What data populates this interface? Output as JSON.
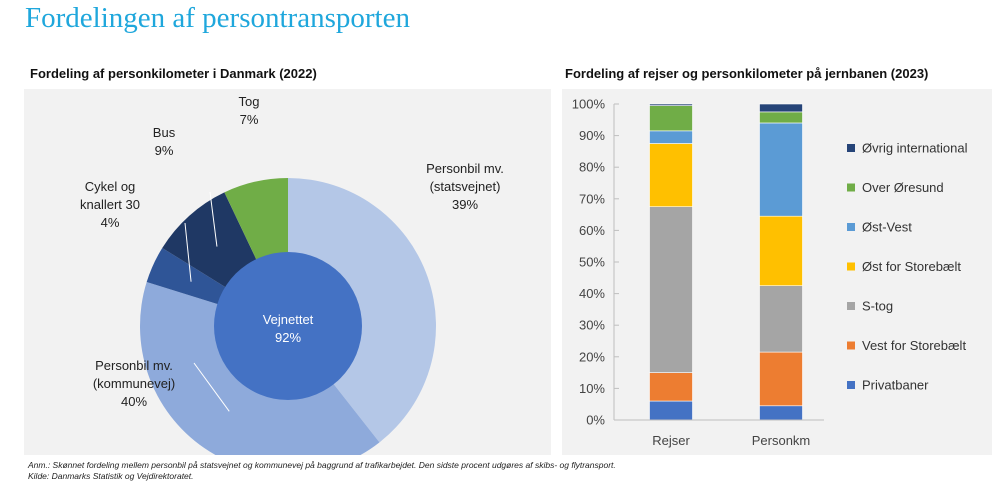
{
  "header": {
    "title": "Fordelingen af persontransporten"
  },
  "chart_data": [
    {
      "type": "pie",
      "title": "Fordeling af personkilometer i Danmark (2022)",
      "outer_ring": [
        {
          "name": "Personbil mv. (statsvejnet)",
          "label_lines": [
            "Personbil mv.",
            "(statsvejnet)"
          ],
          "value": 39,
          "pct_label": "39%",
          "color": "#b4c7e7"
        },
        {
          "name": "Personbil mv. (kommunevej)",
          "label_lines": [
            "Personbil mv.",
            "(kommunevej)"
          ],
          "value": 40,
          "pct_label": "40%",
          "color": "#8eaadb"
        },
        {
          "name": "Cykel og knallert 30",
          "label_lines": [
            "Cykel og",
            "knallert 30"
          ],
          "value": 4,
          "pct_label": "4%",
          "color": "#2f5597"
        },
        {
          "name": "Bus",
          "label_lines": [
            "Bus"
          ],
          "value": 9,
          "pct_label": "9%",
          "color": "#1f3864"
        },
        {
          "name": "Tog",
          "label_lines": [
            "Tog"
          ],
          "value": 7,
          "pct_label": "7%",
          "color": "#70ad47"
        }
      ],
      "inner": {
        "name": "Vejnettet",
        "value": 92,
        "pct_label": "92%",
        "color": "#4472c4"
      }
    },
    {
      "type": "bar",
      "stacked": true,
      "title": "Fordeling af rejser og personkilometer på jernbanen (2023)",
      "categories": [
        "Rejser",
        "Personkm"
      ],
      "y_ticks": [
        "0%",
        "10%",
        "20%",
        "30%",
        "40%",
        "50%",
        "60%",
        "70%",
        "80%",
        "90%",
        "100%"
      ],
      "ylim": [
        0,
        100
      ],
      "series": [
        {
          "name": "Privatbaner",
          "color": "#4472c4",
          "values": [
            6,
            4.5
          ]
        },
        {
          "name": "Vest for Storebælt",
          "color": "#ed7d31",
          "values": [
            9,
            17
          ]
        },
        {
          "name": "S-tog",
          "color": "#a5a5a5",
          "values": [
            52.5,
            21
          ]
        },
        {
          "name": "Øst for Storebælt",
          "color": "#ffc000",
          "values": [
            20,
            22
          ]
        },
        {
          "name": "Øst-Vest",
          "color": "#5b9bd5",
          "values": [
            4,
            29.5
          ]
        },
        {
          "name": "Over Øresund",
          "color": "#70ad47",
          "values": [
            8,
            3.5
          ]
        },
        {
          "name": "Øvrig international",
          "color": "#264478",
          "values": [
            0.5,
            2.5
          ]
        }
      ]
    }
  ],
  "notes": {
    "anm": "Anm.: Skønnet fordeling mellem personbil på statsvejnet og kommunevej på baggrund af trafikarbejdet. Den sidste procent udgøres af skibs- og flytransport.",
    "kilde": "Kilde: Danmarks Statistik og Vejdirektoratet."
  }
}
